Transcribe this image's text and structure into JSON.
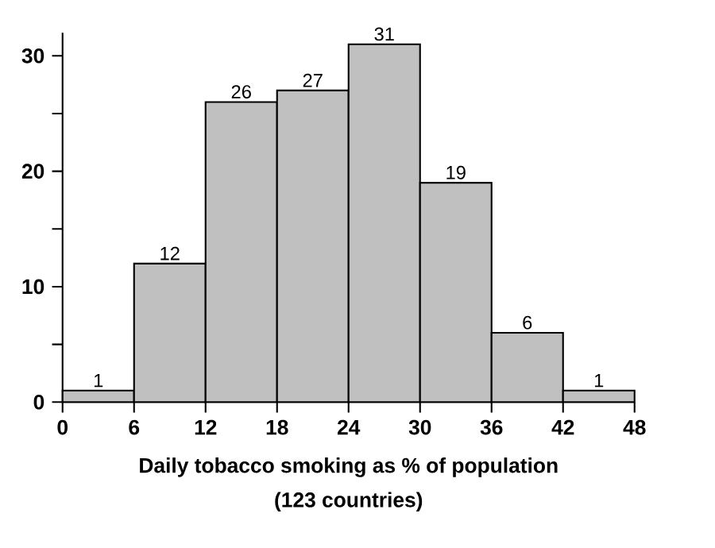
{
  "chart_data": {
    "type": "histogram",
    "xlabel": "Daily tobacco smoking as % of population",
    "annotations": [
      "(123 countries)"
    ],
    "bins": [
      0,
      6,
      12,
      18,
      24,
      30,
      36,
      42,
      48
    ],
    "values": [
      1,
      12,
      26,
      27,
      31,
      19,
      6,
      1
    ],
    "color": "#c0c0c0",
    "data_labels": true,
    "xlim": [
      0,
      48
    ],
    "xticks": [
      0,
      6,
      12,
      18,
      24,
      30,
      36,
      42,
      48
    ],
    "ylim": [
      0,
      32
    ],
    "yticks": [
      0,
      {
        "value": 5,
        "label": null
      },
      10,
      {
        "value": 15,
        "label": null
      },
      20,
      {
        "value": 25,
        "label": null
      },
      30
    ]
  }
}
